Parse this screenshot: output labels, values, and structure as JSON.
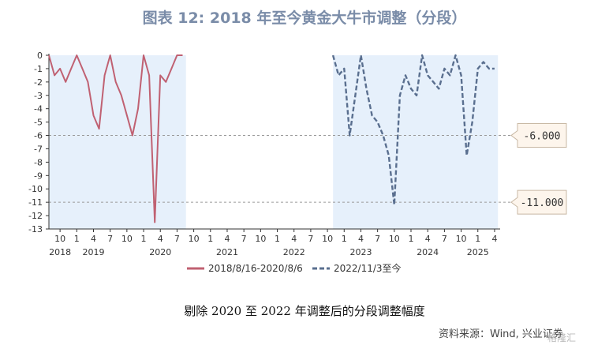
{
  "title": "图表 12: 2018 年至今黄金大牛市调整（分段）",
  "caption": "剔除 2020 至 2022 年调整后的分段调整幅度",
  "source": "资料来源：Wind, 兴业证券",
  "watermark": "格隆汇",
  "colors": {
    "series1": "#c06172",
    "series2": "#5a6f8f",
    "band": "#e6f0fb",
    "refline": "#9a9a9a",
    "callout_bg": "#fdf5ec",
    "callout_border": "#c8b8a4"
  },
  "chart_data": {
    "type": "line",
    "ylim": [
      -13,
      0
    ],
    "y_ticks": [
      "0",
      "-1",
      "-2",
      "-3",
      "-4",
      "-5",
      "-6",
      "-7",
      "-8",
      "-9",
      "-10",
      "-11",
      "-12",
      "-13"
    ],
    "x_ticks": [
      "10",
      "1",
      "4",
      "7",
      "10",
      "1",
      "4",
      "7",
      "10",
      "1",
      "4",
      "7",
      "10",
      "1",
      "4",
      "7",
      "10",
      "1",
      "4",
      "7",
      "10",
      "1",
      "4",
      "7",
      "10",
      "1",
      "4"
    ],
    "years": [
      "2018",
      "2019",
      "2020",
      "2021",
      "2022",
      "2023",
      "2024",
      "2025"
    ],
    "reference_lines": [
      {
        "value": -6,
        "label": "-6.000"
      },
      {
        "value": -11,
        "label": "-11.000"
      }
    ],
    "series": [
      {
        "name": "2018/8/16-2020/8/6",
        "style": "solid",
        "points": [
          [
            "2018-08",
            0
          ],
          [
            "2018-09",
            -1.5
          ],
          [
            "2018-10",
            -1
          ],
          [
            "2018-11",
            -2
          ],
          [
            "2018-12",
            -1
          ],
          [
            "2019-01",
            0
          ],
          [
            "2019-02",
            -1
          ],
          [
            "2019-03",
            -2
          ],
          [
            "2019-04",
            -4.5
          ],
          [
            "2019-05",
            -5.5
          ],
          [
            "2019-06",
            -1.5
          ],
          [
            "2019-07",
            0
          ],
          [
            "2019-08",
            -2
          ],
          [
            "2019-09",
            -3
          ],
          [
            "2019-10",
            -4.5
          ],
          [
            "2019-11",
            -6
          ],
          [
            "2019-12",
            -4
          ],
          [
            "2020-01",
            0
          ],
          [
            "2020-02",
            -1.5
          ],
          [
            "2020-03",
            -12.5
          ],
          [
            "2020-04",
            -1.5
          ],
          [
            "2020-05",
            -2
          ],
          [
            "2020-06",
            -1
          ],
          [
            "2020-07",
            0
          ],
          [
            "2020-08",
            0
          ]
        ]
      },
      {
        "name": "2022/11/3至今",
        "style": "dashed",
        "points": [
          [
            "2022-11",
            0
          ],
          [
            "2022-12",
            -1.5
          ],
          [
            "2023-01",
            -1
          ],
          [
            "2023-02",
            -6
          ],
          [
            "2023-03",
            -3
          ],
          [
            "2023-04",
            0
          ],
          [
            "2023-05",
            -2.5
          ],
          [
            "2023-06",
            -4.5
          ],
          [
            "2023-07",
            -5
          ],
          [
            "2023-08",
            -6
          ],
          [
            "2023-09",
            -7.5
          ],
          [
            "2023-10",
            -11.2
          ],
          [
            "2023-11",
            -3
          ],
          [
            "2023-12",
            -1.5
          ],
          [
            "2024-01",
            -2.5
          ],
          [
            "2024-02",
            -3
          ],
          [
            "2024-03",
            0
          ],
          [
            "2024-04",
            -1.5
          ],
          [
            "2024-05",
            -2
          ],
          [
            "2024-06",
            -2.5
          ],
          [
            "2024-07",
            -1
          ],
          [
            "2024-08",
            -1.5
          ],
          [
            "2024-09",
            0
          ],
          [
            "2024-10",
            -1.5
          ],
          [
            "2024-11",
            -7.5
          ],
          [
            "2024-12",
            -5
          ],
          [
            "2025-01",
            -1
          ],
          [
            "2025-02",
            -0.5
          ],
          [
            "2025-03",
            -1
          ],
          [
            "2025-04",
            -1
          ]
        ]
      }
    ],
    "shaded_ranges": [
      [
        "2018-08",
        "2020-08"
      ],
      [
        "2022-11",
        "2025-04"
      ]
    ],
    "legend_position": "bottom"
  }
}
